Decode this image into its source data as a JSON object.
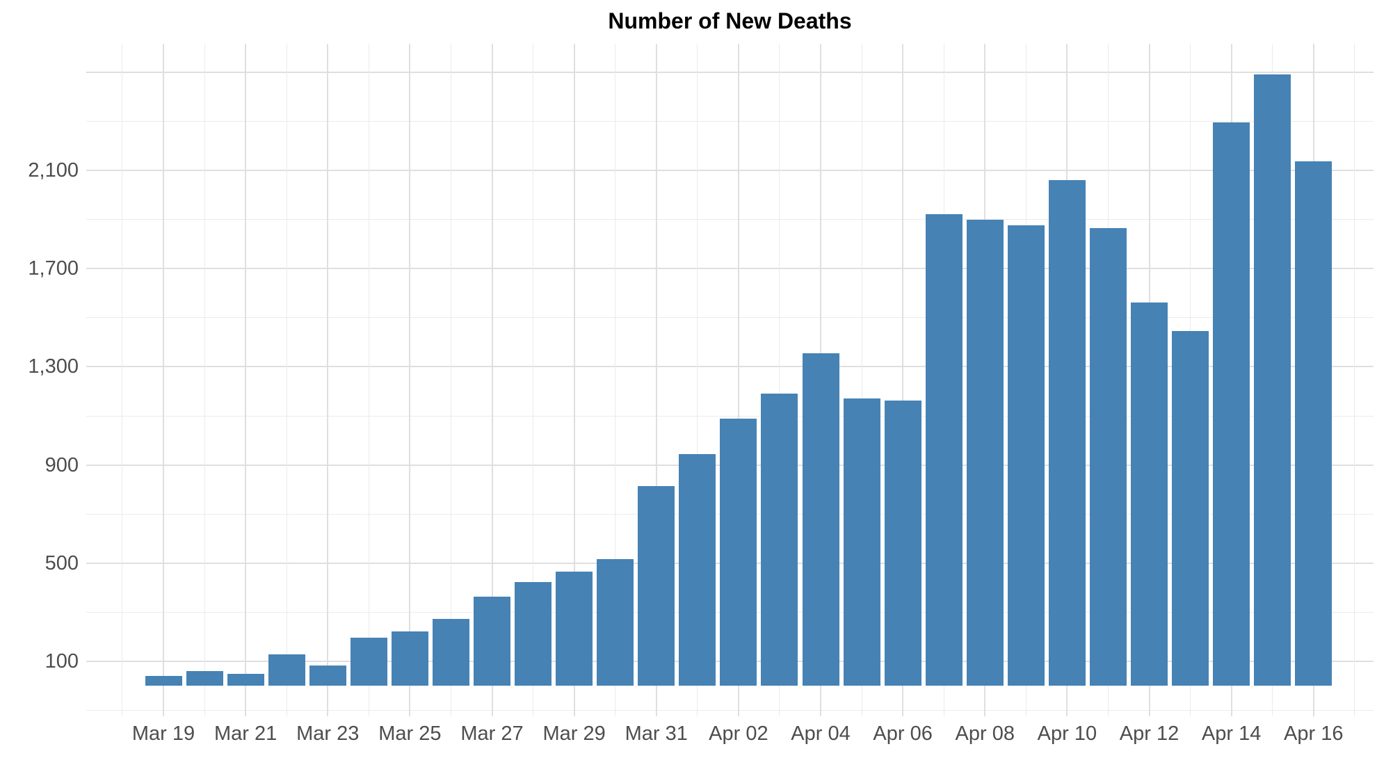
{
  "chart_data": {
    "type": "bar",
    "title": "Number of New Deaths",
    "xlabel": "",
    "ylabel": "",
    "categories": [
      "Mar 19",
      "Mar 20",
      "Mar 21",
      "Mar 22",
      "Mar 23",
      "Mar 24",
      "Mar 25",
      "Mar 26",
      "Mar 27",
      "Mar 28",
      "Mar 29",
      "Mar 30",
      "Mar 31",
      "Apr 01",
      "Apr 02",
      "Apr 03",
      "Apr 04",
      "Apr 05",
      "Apr 06",
      "Apr 07",
      "Apr 08",
      "Apr 09",
      "Apr 10",
      "Apr 11",
      "Apr 12",
      "Apr 13",
      "Apr 14",
      "Apr 15",
      "Apr 16"
    ],
    "values": [
      40,
      60,
      50,
      127,
      82,
      195,
      222,
      274,
      362,
      423,
      464,
      515,
      815,
      945,
      1088,
      1190,
      1354,
      1171,
      1162,
      1923,
      1900,
      1876,
      2062,
      1864,
      1562,
      1446,
      2296,
      2490,
      2136
    ],
    "x_axis": {
      "tick_labels": [
        "Mar 19",
        "Mar 21",
        "Mar 23",
        "Mar 25",
        "Mar 27",
        "Mar 29",
        "Mar 31",
        "Apr 02",
        "Apr 04",
        "Apr 06",
        "Apr 08",
        "Apr 10",
        "Apr 12",
        "Apr 14",
        "Apr 16"
      ],
      "tick_day_step": 2
    },
    "y_axis": {
      "tick_values": [
        100,
        500,
        900,
        1300,
        1700,
        2100
      ],
      "tick_labels": [
        "100",
        "500",
        "900",
        "1,300",
        "1,700",
        "2,100"
      ],
      "major_grid_values": [
        -300,
        100,
        500,
        900,
        1300,
        1700,
        2100,
        2500
      ],
      "minor_grid_values": [
        -100,
        300,
        700,
        1100,
        1500,
        1900,
        2300
      ]
    },
    "layout": {
      "ylim": [
        -124,
        2616
      ],
      "xlim_days": [
        -1.88,
        29.46
      ],
      "grid": "on",
      "legend": "none",
      "background": "#ffffff"
    },
    "colors": {
      "bar_fill": "#4682b4",
      "grid_major": "#dfdfdf",
      "grid_minor": "#ebebeb",
      "axis_text": "#4d4d4d",
      "title_text": "#000000"
    }
  }
}
